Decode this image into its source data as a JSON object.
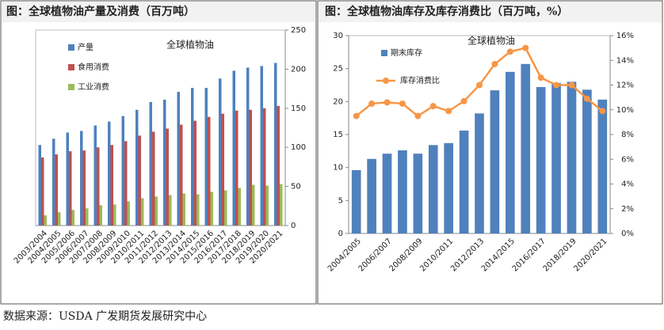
{
  "source": "数据来源：USDA  广发期货发展研究中心",
  "chart_data": [
    {
      "type": "bar",
      "caption": "图：全球植物油产量及消费（百万吨）",
      "title": "全球植物油",
      "categories": [
        "2003/2004",
        "2004/2005",
        "2005/2006",
        "2006/2007",
        "2007/2008",
        "2008/2009",
        "2009/2010",
        "2010/2011",
        "2011/2012",
        "2012/2013",
        "2013/2014",
        "2014/2015",
        "2015/2016",
        "2016/2017",
        "2017/2018",
        "2018/2019",
        "2019/2020",
        "2020/2021"
      ],
      "series": [
        {
          "name": "产量",
          "color": "#4f81bd",
          "values": [
            103,
            111,
            119,
            121,
            128,
            133,
            140,
            148,
            158,
            161,
            171,
            176,
            176,
            188,
            198,
            202,
            204,
            208
          ]
        },
        {
          "name": "食用消费",
          "color": "#c0504d",
          "values": [
            87,
            91,
            95,
            96,
            100,
            103,
            108,
            115,
            120,
            124,
            129,
            134,
            139,
            143,
            147,
            148,
            150,
            153
          ]
        },
        {
          "name": "工业消费",
          "color": "#9bbb59",
          "values": [
            13,
            17,
            20,
            22,
            26,
            27,
            31,
            35,
            37,
            39,
            41,
            40,
            43,
            45,
            48,
            52,
            51,
            53
          ]
        }
      ],
      "ylim": [
        0,
        250
      ],
      "yticks": [
        0,
        50,
        100,
        150,
        200,
        250
      ],
      "y_axis_side": "right",
      "legend": "upper left"
    },
    {
      "type": "bar",
      "caption": "图：全球植物油库存及库存消费比（百万吨，%）",
      "title": "全球植物油",
      "categories": [
        "2004/2005",
        null,
        "2006/2007",
        null,
        "2008/2009",
        null,
        "2010/2011",
        null,
        "2012/2013",
        null,
        "2014/2015",
        null,
        "2016/2017",
        null,
        "2018/2019",
        null,
        "2020/2021"
      ],
      "series": [
        {
          "name": "期末库存",
          "color": "#4f81bd",
          "values": [
            9.6,
            11.3,
            12.1,
            12.6,
            12.1,
            13.4,
            13.7,
            15.6,
            18.2,
            21.7,
            24.5,
            25.7,
            22.2,
            22.8,
            23,
            21.8,
            20.3
          ]
        },
        {
          "name": "库存消费比",
          "color": "#f79646",
          "type": "line",
          "axis": "y2",
          "values": [
            9.5,
            10.5,
            10.6,
            10.5,
            9.5,
            10.3,
            9.9,
            10.7,
            12,
            13.7,
            14.7,
            15,
            12.6,
            12,
            12,
            10.9,
            9.9
          ]
        }
      ],
      "ylim": [
        0,
        30
      ],
      "yticks": [
        0,
        5,
        10,
        15,
        20,
        25,
        30
      ],
      "y2lim": [
        0,
        16
      ],
      "y2ticks": [
        {
          "value": 0,
          "label": "0%"
        },
        {
          "value": 2,
          "label": "2%"
        },
        {
          "value": 4,
          "label": "4%"
        },
        {
          "value": 6,
          "label": "6%"
        },
        {
          "value": 8,
          "label": "8%"
        },
        {
          "value": 10,
          "label": "10%"
        },
        {
          "value": 12,
          "label": "12%"
        },
        {
          "value": 14,
          "label": "14%"
        },
        {
          "value": 16,
          "label": "16%"
        }
      ],
      "legend": "upper left"
    }
  ]
}
